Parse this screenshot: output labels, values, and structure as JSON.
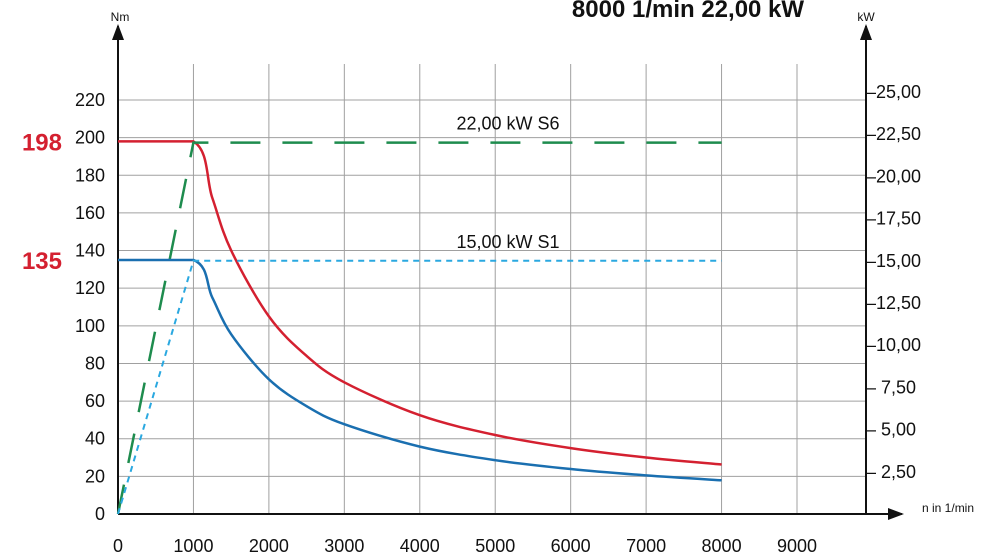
{
  "chart_data": {
    "type": "line",
    "title": "8000  1/min 22,00 kW",
    "ylabel_left": "Nm",
    "ylabel_right": "kW",
    "xlabel": "n in 1/min",
    "xlim": [
      0,
      9000
    ],
    "xticks": [
      "0",
      "1000",
      "2000",
      "3000",
      "4000",
      "5000",
      "6000",
      "7000",
      "8000",
      "9000"
    ],
    "ylim_left": [
      0,
      220
    ],
    "yticks_left": [
      "0",
      "20",
      "40",
      "60",
      "80",
      "100",
      "120",
      "140",
      "160",
      "180",
      "200",
      "220"
    ],
    "ylim_right": [
      0,
      25
    ],
    "yticks_right": [
      "– 2,50",
      "– 5,00",
      "– 7,50",
      "–10,00",
      "–12,50",
      "–15,00",
      "–17,50",
      "–20,00",
      "–22,50",
      "–25,00"
    ],
    "grid": true,
    "markers": [
      {
        "label": "198",
        "value": 198,
        "color": "#d42030"
      },
      {
        "label": "135",
        "value": 135,
        "color": "#d42030"
      }
    ],
    "series": [
      {
        "name": "22,00 kW  S6",
        "type": "torque",
        "color": "#d42030",
        "x": [
          0,
          1000,
          1250,
          1500,
          2000,
          2500,
          3000,
          4000,
          5000,
          6000,
          7000,
          8000
        ],
        "y": [
          198,
          198,
          168,
          140,
          105,
          84,
          70,
          52.5,
          42,
          35,
          30,
          26.3
        ]
      },
      {
        "name": "",
        "type": "power",
        "color": "#1e8c4e",
        "x": [
          0,
          1000,
          8000
        ],
        "y": [
          0,
          22,
          22
        ]
      },
      {
        "name": "15,00 kW  S1",
        "type": "torque",
        "color": "#1a6fb0",
        "x": [
          0,
          1000,
          1250,
          1500,
          2000,
          2500,
          3000,
          4000,
          5000,
          6000,
          7000,
          8000
        ],
        "y": [
          135,
          135,
          115,
          95.5,
          71.6,
          57.3,
          47.7,
          35.8,
          28.6,
          23.9,
          20.5,
          17.9
        ]
      },
      {
        "name": "",
        "type": "power",
        "color": "#2aa8e0",
        "x": [
          0,
          1000,
          8000
        ],
        "y": [
          0,
          15,
          15
        ]
      }
    ]
  }
}
